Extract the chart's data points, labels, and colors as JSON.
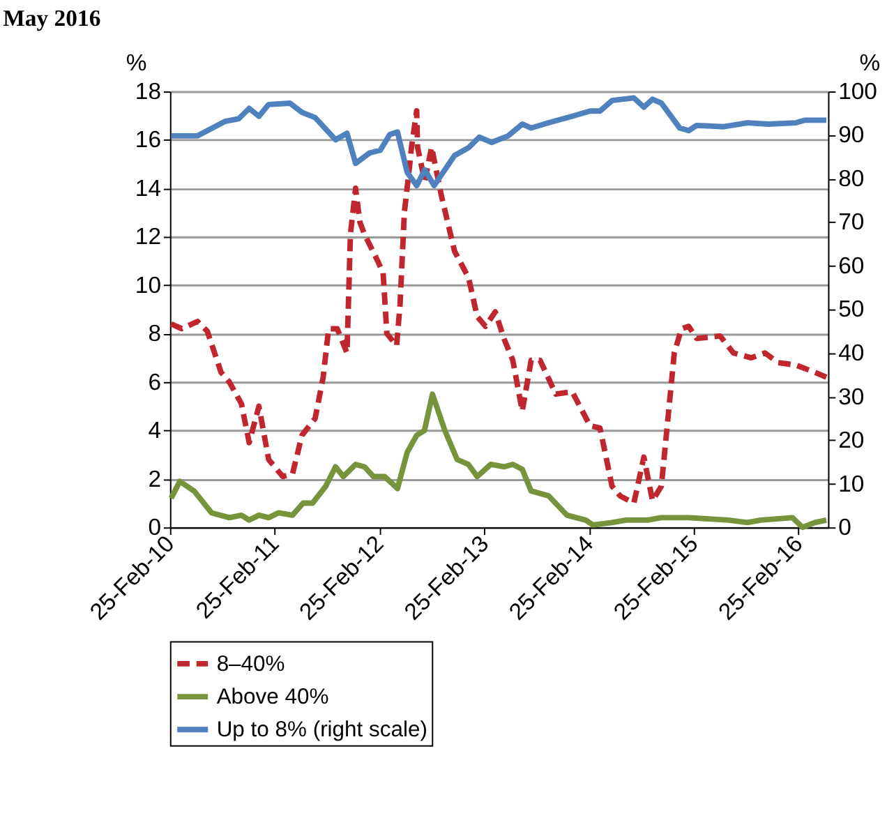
{
  "chart_data": {
    "type": "line",
    "title": "May 2016",
    "ylabel": "%",
    "y2label": "%",
    "xlim": [
      "2010-02-25",
      "2016-06-07"
    ],
    "xticks": [
      {
        "value": "2010-02-25",
        "label": "25-Feb-10"
      },
      {
        "value": "2011-02-25",
        "label": "25-Feb-11"
      },
      {
        "value": "2012-02-25",
        "label": "25-Feb-12"
      },
      {
        "value": "2013-02-25",
        "label": "25-Feb-13"
      },
      {
        "value": "2014-02-25",
        "label": "25-Feb-14"
      },
      {
        "value": "2015-02-25",
        "label": "25-Feb-15"
      },
      {
        "value": "2016-02-25",
        "label": "25-Feb-16"
      }
    ],
    "ylim": [
      0,
      18
    ],
    "yticks": [
      0,
      2,
      4,
      6,
      8,
      10,
      12,
      14,
      16,
      18
    ],
    "y2lim": [
      0,
      100
    ],
    "y2ticks": [
      0,
      10,
      20,
      30,
      40,
      50,
      60,
      70,
      80,
      90,
      100
    ],
    "grid": "y",
    "legend": "bottom",
    "series": [
      {
        "name": "8–40%",
        "color": "#c0262d",
        "line_style": "dashed",
        "x": [
          "2010-03-01",
          "2010-04-07",
          "2010-06-01",
          "2010-07-05",
          "2010-08-22",
          "2010-09-20",
          "2010-11-01",
          "2010-11-28",
          "2011-01-01",
          "2011-02-04",
          "2011-03-25",
          "2011-04-28",
          "2011-05-31",
          "2011-07-16",
          "2011-08-13",
          "2011-09-01",
          "2011-10-01",
          "2011-11-04",
          "2011-11-16",
          "2011-12-04",
          "2011-12-19",
          "2012-01-04",
          "2012-02-19",
          "2012-03-09",
          "2012-03-22",
          "2012-04-25",
          "2012-05-07",
          "2012-05-22",
          "2012-06-10",
          "2012-06-16",
          "2012-07-04",
          "2012-07-07",
          "2012-08-01",
          "2012-08-25",
          "2012-09-28",
          "2012-11-13",
          "2013-01-01",
          "2013-01-31",
          "2013-03-01",
          "2013-04-04",
          "2013-05-04",
          "2013-06-04",
          "2013-07-07",
          "2013-08-07",
          "2013-09-07",
          "2013-11-01",
          "2013-12-28",
          "2014-02-28",
          "2014-04-04",
          "2014-05-16",
          "2014-06-13",
          "2014-07-31",
          "2014-09-04",
          "2014-10-04",
          "2014-11-04",
          "2014-12-19",
          "2015-01-13",
          "2015-02-07",
          "2015-03-07",
          "2015-05-28",
          "2015-07-13",
          "2015-09-13",
          "2015-10-31",
          "2015-12-16",
          "2016-02-16",
          "2016-04-22",
          "2016-06-01"
        ],
        "values": [
          8.4,
          8.2,
          8.5,
          8.1,
          6.4,
          6.0,
          5.1,
          3.5,
          5.0,
          2.8,
          2.1,
          2.2,
          3.8,
          4.5,
          6.2,
          8.2,
          8.2,
          7.2,
          12.1,
          14.0,
          12.6,
          12.1,
          11.0,
          10.5,
          8.0,
          7.5,
          9.2,
          13.0,
          15.0,
          15.7,
          17.2,
          15.7,
          14.3,
          15.7,
          13.7,
          11.4,
          10.3,
          8.7,
          8.3,
          8.9,
          7.8,
          6.9,
          4.8,
          6.9,
          6.9,
          5.5,
          5.6,
          4.2,
          4.1,
          1.7,
          1.3,
          1.0,
          2.9,
          1.1,
          1.7,
          7.2,
          8.2,
          8.3,
          7.8,
          7.9,
          7.2,
          7.0,
          7.2,
          6.8,
          6.7,
          6.4,
          6.2
        ]
      },
      {
        "name": "Above 40%",
        "color": "#77933c",
        "line_style": "solid",
        "x": [
          "2010-03-01",
          "2010-03-31",
          "2010-05-20",
          "2010-07-20",
          "2010-09-20",
          "2010-11-01",
          "2010-11-28",
          "2011-01-01",
          "2011-02-04",
          "2011-03-10",
          "2011-04-28",
          "2011-06-04",
          "2011-07-07",
          "2011-08-22",
          "2011-09-25",
          "2011-10-22",
          "2011-12-04",
          "2012-01-04",
          "2012-02-04",
          "2012-03-14",
          "2012-04-28",
          "2012-06-01",
          "2012-07-04",
          "2012-07-31",
          "2012-08-28",
          "2012-10-10",
          "2012-11-22",
          "2012-12-31",
          "2013-01-31",
          "2013-03-19",
          "2013-05-04",
          "2013-06-04",
          "2013-07-07",
          "2013-08-07",
          "2013-10-07",
          "2013-12-10",
          "2014-02-13",
          "2014-03-10",
          "2014-05-16",
          "2014-07-04",
          "2014-09-16",
          "2014-11-04",
          "2015-02-07",
          "2015-06-25",
          "2015-08-31",
          "2015-10-16",
          "2016-02-04",
          "2016-03-10",
          "2016-04-22",
          "2016-06-01"
        ],
        "values": [
          1.2,
          1.9,
          1.5,
          0.6,
          0.4,
          0.5,
          0.3,
          0.5,
          0.4,
          0.6,
          0.5,
          1.0,
          1.0,
          1.7,
          2.5,
          2.1,
          2.6,
          2.5,
          2.1,
          2.1,
          1.6,
          3.1,
          3.8,
          4.0,
          5.5,
          4.0,
          2.8,
          2.6,
          2.1,
          2.6,
          2.5,
          2.6,
          2.4,
          1.5,
          1.3,
          0.5,
          0.3,
          0.1,
          0.2,
          0.3,
          0.3,
          0.4,
          0.4,
          0.3,
          0.2,
          0.3,
          0.4,
          0.0,
          0.2,
          0.3
        ]
      },
      {
        "name": "Up to 8% (right scale)",
        "color": "#4f81bd",
        "line_style": "solid",
        "axis": "y2",
        "x": [
          "2010-03-01",
          "2010-06-01",
          "2010-09-04",
          "2010-10-22",
          "2010-11-28",
          "2011-01-01",
          "2011-02-04",
          "2011-04-19",
          "2011-05-31",
          "2011-07-16",
          "2011-09-25",
          "2011-11-04",
          "2011-12-04",
          "2012-01-22",
          "2012-02-28",
          "2012-04-01",
          "2012-04-28",
          "2012-06-01",
          "2012-07-04",
          "2012-08-01",
          "2012-09-03",
          "2012-11-13",
          "2013-01-01",
          "2013-02-07",
          "2013-03-22",
          "2013-05-19",
          "2013-07-07",
          "2013-08-07",
          "2013-10-07",
          "2013-12-28",
          "2014-02-28",
          "2014-04-04",
          "2014-05-16",
          "2014-07-31",
          "2014-09-04",
          "2014-10-04",
          "2014-11-04",
          "2015-01-07",
          "2015-02-07",
          "2015-03-07",
          "2015-06-10",
          "2015-08-31",
          "2015-11-12",
          "2016-02-16",
          "2016-03-19",
          "2016-06-01"
        ],
        "values": [
          89.8,
          89.8,
          93.1,
          93.7,
          96.1,
          94.3,
          97.0,
          97.3,
          95.2,
          94.0,
          88.9,
          90.4,
          83.5,
          85.9,
          86.5,
          90.1,
          90.7,
          81.4,
          78.4,
          82.0,
          78.4,
          85.3,
          87.1,
          89.5,
          88.3,
          89.8,
          92.5,
          91.6,
          92.8,
          94.3,
          95.5,
          95.5,
          97.9,
          98.5,
          96.4,
          98.2,
          97.3,
          91.6,
          91.0,
          92.2,
          91.9,
          92.8,
          92.5,
          92.8,
          93.4,
          93.4
        ]
      }
    ]
  }
}
